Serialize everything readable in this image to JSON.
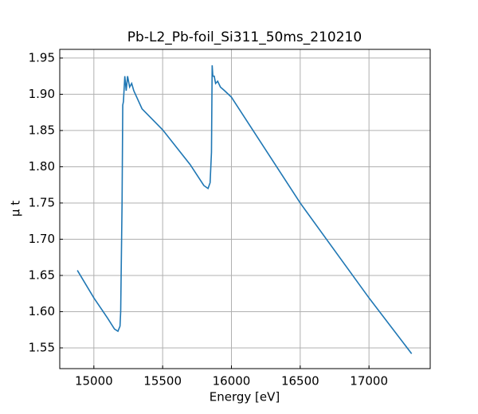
{
  "chart_data": {
    "type": "line",
    "title": "Pb-L2_Pb-foil_Si311_50ms_210210",
    "x_label": "Energy [eV]",
    "y_label": "μ t",
    "x": [
      14880,
      15000,
      15100,
      15150,
      15175,
      15190,
      15195,
      15205,
      15210,
      15215,
      15225,
      15235,
      15245,
      15260,
      15275,
      15290,
      15350,
      15500,
      15700,
      15800,
      15830,
      15845,
      15855,
      15860,
      15865,
      15875,
      15885,
      15900,
      15920,
      15950,
      16000,
      16500,
      17000,
      17310
    ],
    "series": [
      {
        "name": "mu",
        "color": "#1f77b4",
        "values": [
          1.657,
          1.619,
          1.591,
          1.576,
          1.573,
          1.58,
          1.6,
          1.75,
          1.885,
          1.89,
          1.925,
          1.905,
          1.925,
          1.91,
          1.915,
          1.905,
          1.88,
          1.851,
          1.803,
          1.774,
          1.77,
          1.778,
          1.82,
          1.94,
          1.925,
          1.925,
          1.915,
          1.918,
          1.91,
          1.905,
          1.896,
          1.75,
          1.619,
          1.542
        ]
      }
    ],
    "xlim": [
      14752,
      17445
    ],
    "ylim": [
      1.5214,
      1.962
    ],
    "xticks": [
      15000,
      15500,
      16000,
      16500,
      17000
    ],
    "yticks": [
      1.55,
      {
        "value": 1.6,
        "label": "1.60"
      },
      1.65,
      {
        "value": 1.7,
        "label": "1.70"
      },
      1.75,
      {
        "value": 1.8,
        "label": "1.80"
      },
      1.85,
      {
        "value": 1.9,
        "label": "1.90"
      },
      1.95
    ],
    "grid": true
  }
}
